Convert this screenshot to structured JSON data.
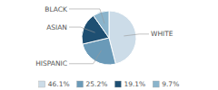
{
  "chart_data": {
    "type": "pie",
    "categories": [
      "WHITE",
      "HISPANIC",
      "ASIAN",
      "BLACK"
    ],
    "values": [
      46.1,
      25.2,
      19.1,
      9.7
    ],
    "value_labels": [
      "46.1%",
      "25.2%",
      "19.1%",
      "9.7%"
    ],
    "colors": [
      "#ccdce8",
      "#6a9ab8",
      "#1e4f72",
      "#8ab4cc"
    ],
    "legend": "bottom"
  }
}
